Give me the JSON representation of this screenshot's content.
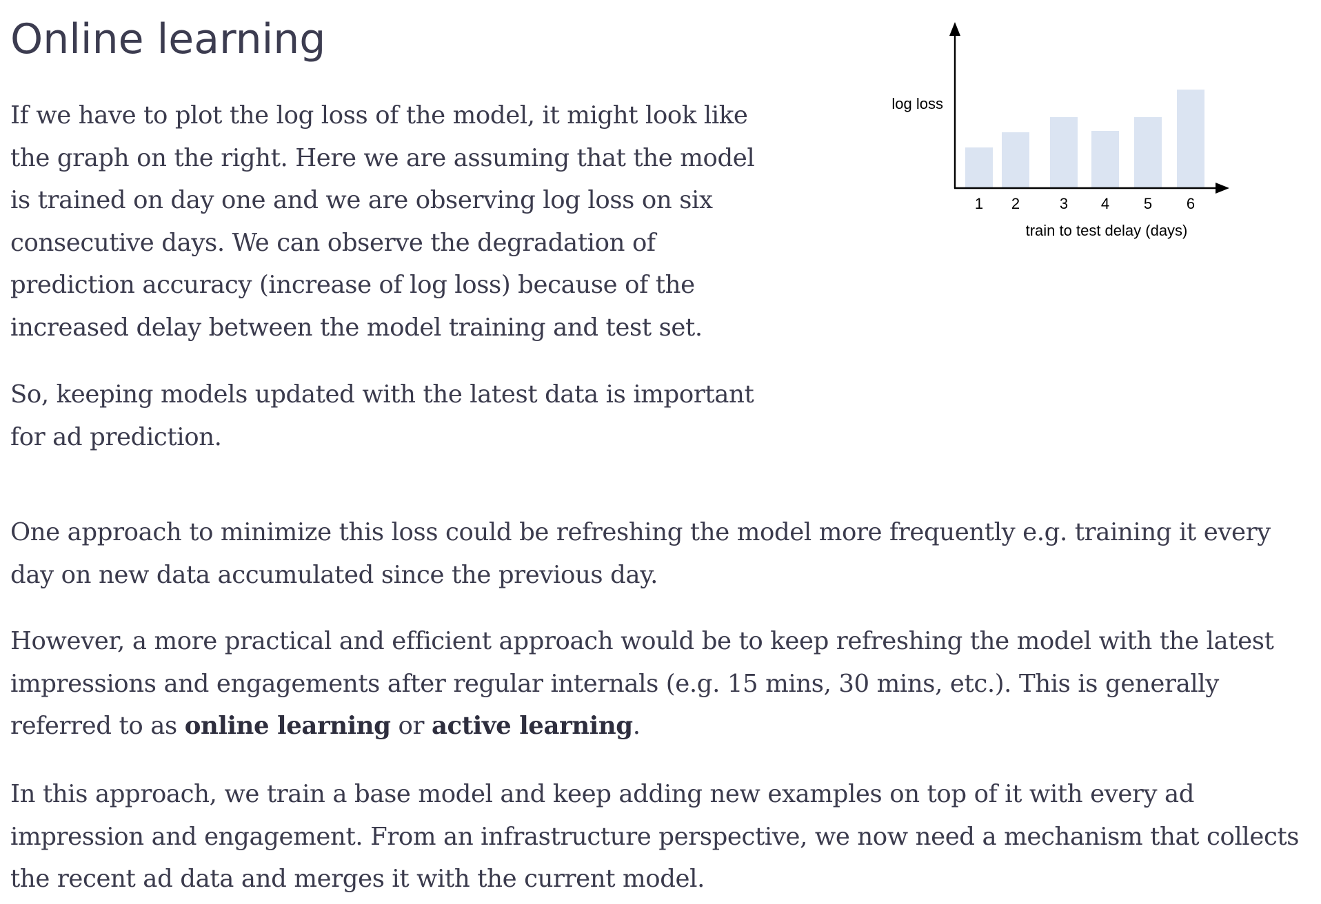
{
  "page": {
    "title": "Online learning"
  },
  "content": {
    "p1": "If we have to plot the log loss of the model, it might look like the graph on the right. Here we are assuming that the model is trained on day one and we are observing log loss on six consecutive days. We can observe the degradation of prediction accuracy (increase of log loss) because of the increased delay between the model training and test set.",
    "p2": "So, keeping models updated with the latest data is important for ad prediction.",
    "p3": "One approach to minimize this loss could be refreshing the model more frequently e.g. training it every day on new data accumulated since the previous day.",
    "p4_before": "However, a more practical and efficient approach would be to keep refreshing the model with the latest impressions and engagements after regular internals (e.g. 15 mins, 30 mins, etc.). This is generally referred to as ",
    "p4_bold1": "online learning",
    "p4_middle": " or ",
    "p4_bold2": "active learning",
    "p4_after": ".",
    "p5": "In this approach, we train a base model and keep adding new examples on top of it with every ad impression and engagement. From an infrastructure perspective, we now need a mechanism that collects the recent ad data and merges it with the current model."
  },
  "chart_data": {
    "type": "bar",
    "title": "",
    "xlabel": "train to test delay (days)",
    "ylabel": "log loss",
    "categories": [
      "1",
      "2",
      "3",
      "4",
      "5",
      "6"
    ],
    "values": [
      2.9,
      4.0,
      5.1,
      4.1,
      5.1,
      7.1
    ],
    "ylim": [
      0,
      12
    ],
    "bar_color": "#dbe4f2",
    "axis_color": "#000000",
    "grid": false
  }
}
